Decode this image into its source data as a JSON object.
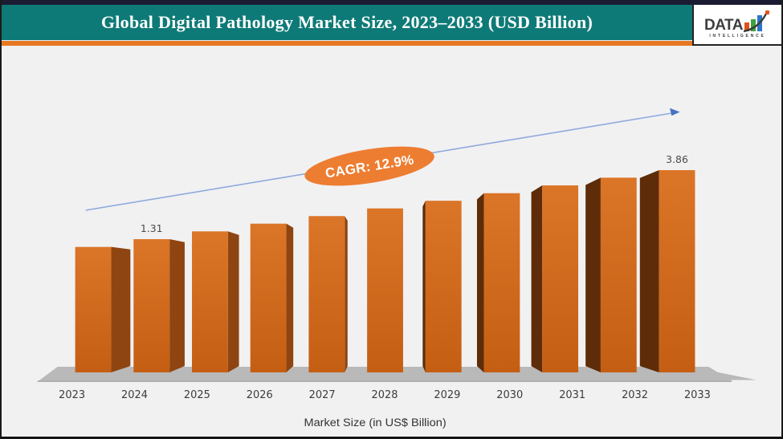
{
  "header": {
    "title": "Global Digital Pathology Market Size, 2023–2033 (USD Billion)",
    "logo": {
      "brand": "DATA",
      "sub": "INTELLIGENCE"
    },
    "colors": {
      "band": "#0E7A77",
      "stripe": "#E87722",
      "topbar": "#1B1B33"
    }
  },
  "chart_data": {
    "type": "bar",
    "style": "3d-perspective-columns",
    "title": "Global Digital Pathology Market Size, 2023–2033 (USD Billion)",
    "categories": [
      2023,
      2024,
      2025,
      2026,
      2027,
      2028,
      2029,
      2030,
      2031,
      2032,
      2033
    ],
    "values": [
      1.16,
      1.31,
      1.48,
      1.67,
      1.88,
      2.12,
      2.39,
      2.69,
      3.04,
      3.43,
      3.86
    ],
    "visible_value_labels": {
      "2024": "1.31",
      "2033": "3.86"
    },
    "annotation": "CAGR: 12.9%",
    "xlabel": "Market Size (in US$ Billion)",
    "ylabel": "",
    "axis_labels_shown": "x-only",
    "grid": false,
    "legend": false,
    "trend_arrow": true,
    "colors": {
      "bar_front_top": "#DB7527",
      "bar_front_bottom": "#C45E13",
      "bar_side_light": "#8F4511",
      "bar_side_dark": "#5E2C08",
      "floor": "#B9B9B9",
      "axis_line": "#8a8a8a",
      "arrow_line": "#8FAADC",
      "arrow_head": "#4472C4",
      "badge": "#ED7D31"
    }
  }
}
